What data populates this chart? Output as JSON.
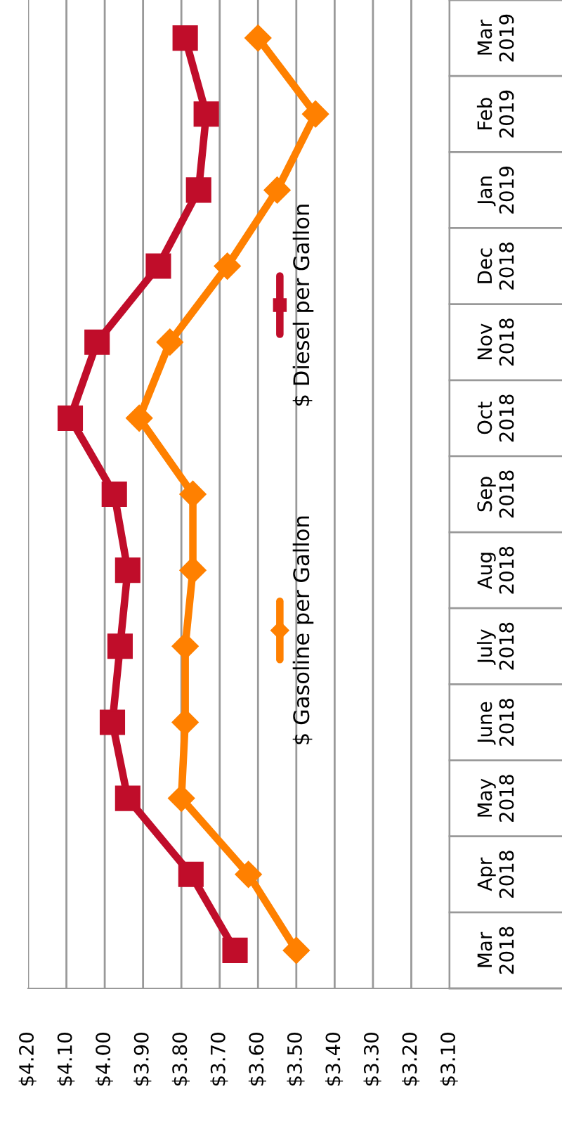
{
  "chart_data": {
    "type": "line",
    "orientation": "horizontal",
    "categories": [
      "Mar\n2019",
      "Feb\n2019",
      "Jan\n2019",
      "Dec\n2018",
      "Nov\n2018",
      "Oct\n2018",
      "Sep\n2018",
      "Aug\n2018",
      "July\n2018",
      "June\n2018",
      "May\n2018",
      "Apr\n2018",
      "Mar\n2018"
    ],
    "series": [
      {
        "name": "$ Gasoline per Gallon",
        "color": "#ff8000",
        "marker": "diamond",
        "values": [
          3.6,
          3.45,
          3.55,
          3.68,
          3.83,
          3.91,
          3.77,
          3.77,
          3.79,
          3.79,
          3.8,
          3.625,
          3.5
        ]
      },
      {
        "name": "$ Diesel per Gallon",
        "color": "#c00d2a",
        "marker": "square",
        "values": [
          3.79,
          3.735,
          3.755,
          3.86,
          4.02,
          4.09,
          3.975,
          3.94,
          3.96,
          3.98,
          3.94,
          3.775,
          3.66
        ]
      }
    ],
    "xlim": [
      4.2,
      3.1
    ],
    "xticks": [
      {
        "value": 4.2,
        "label": "$4.20"
      },
      {
        "value": 4.1,
        "label": "$4.10"
      },
      {
        "value": 4.0,
        "label": "$4.00"
      },
      {
        "value": 3.9,
        "label": "$3.90"
      },
      {
        "value": 3.8,
        "label": "$3.80"
      },
      {
        "value": 3.7,
        "label": "$3.70"
      },
      {
        "value": 3.6,
        "label": "$3.60"
      },
      {
        "value": 3.5,
        "label": "$3.50"
      },
      {
        "value": 3.4,
        "label": "$3.40"
      },
      {
        "value": 3.3,
        "label": "$3.30"
      },
      {
        "value": 3.2,
        "label": "$3.20"
      },
      {
        "value": 3.1,
        "label": "$3.10"
      }
    ],
    "grid": "x",
    "legend": "center"
  }
}
